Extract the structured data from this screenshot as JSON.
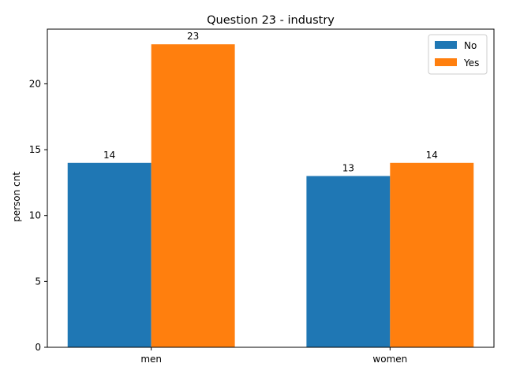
{
  "chart_data": {
    "type": "bar",
    "title": "Question 23 - industry",
    "xlabel": "",
    "ylabel": "person cnt",
    "categories": [
      "men",
      "women"
    ],
    "series": [
      {
        "name": "No",
        "values": [
          14,
          13
        ],
        "color": "#1f77b4"
      },
      {
        "name": "Yes",
        "values": [
          23,
          14
        ],
        "color": "#ff7f0e"
      }
    ],
    "ylim": [
      0,
      24.15
    ],
    "yticks": [
      0,
      5,
      10,
      15,
      20
    ],
    "grid": false,
    "legend_position": "top-right",
    "data_labels": true
  }
}
